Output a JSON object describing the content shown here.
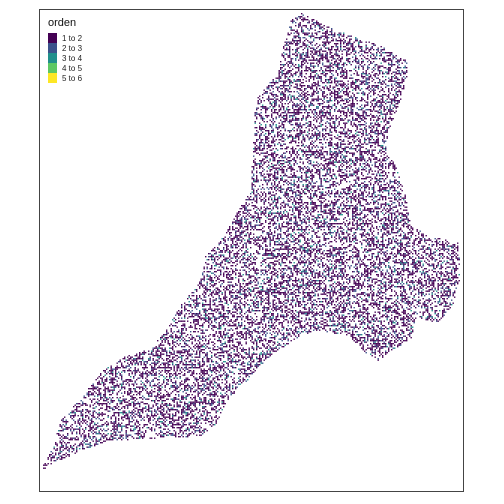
{
  "map": {
    "legend": {
      "title": "orden",
      "items": [
        {
          "label": "1 to 2",
          "color": "#440154"
        },
        {
          "label": "2 to 3",
          "color": "#3b528b"
        },
        {
          "label": "3 to 4",
          "color": "#21908c"
        },
        {
          "label": "4 to 5",
          "color": "#5dc863"
        },
        {
          "label": "5 to 6",
          "color": "#fde725"
        }
      ]
    }
  }
}
